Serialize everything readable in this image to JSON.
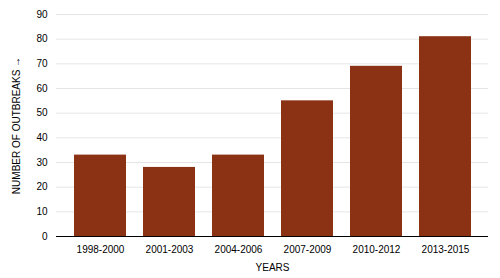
{
  "chart_data": {
    "type": "bar",
    "categories": [
      "1998-2000",
      "2001-2003",
      "2004-2006",
      "2007-2009",
      "2010-2012",
      "2013-2015"
    ],
    "values": [
      33,
      28,
      33,
      55,
      69,
      81
    ],
    "color": "#8B3214",
    "xlabel": "YEARS",
    "ylabel": "NUMBER OF OUTBREAKS",
    "ylim": [
      0,
      90
    ],
    "yticks": [
      0,
      10,
      20,
      30,
      40,
      50,
      60,
      70,
      80,
      90
    ],
    "grid": true
  }
}
